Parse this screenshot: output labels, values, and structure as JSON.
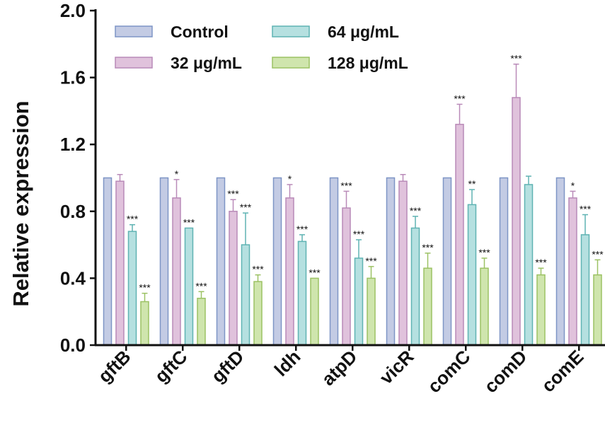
{
  "chart_data": {
    "type": "bar",
    "title": "",
    "xlabel": "",
    "ylabel": "Relative  expression",
    "ylim": [
      0,
      2.0
    ],
    "yticks": [
      "0.0",
      "0.4",
      "0.8",
      "1.2",
      "1.6",
      "2.0"
    ],
    "ytick_values": [
      0,
      0.4,
      0.8,
      1.2,
      1.6,
      2.0
    ],
    "categories": [
      "gftB",
      "gftC",
      "gftD",
      "ldh",
      "atpD",
      "vicR",
      "comC",
      "comD",
      "comE"
    ],
    "legend_position": "top-left",
    "series": [
      {
        "name": "Control",
        "fill": "#c3cbe4",
        "stroke": "#7e95c6",
        "values": [
          1.0,
          1.0,
          1.0,
          1.0,
          1.0,
          1.0,
          1.0,
          1.0,
          1.0
        ],
        "errors": [
          0,
          0,
          0,
          0,
          0,
          0,
          0,
          0,
          0
        ],
        "sig": [
          "",
          "",
          "",
          "",
          "",
          "",
          "",
          "",
          ""
        ]
      },
      {
        "name": "32 μg/mL",
        "fill": "#e0c2dc",
        "stroke": "#b98ab8",
        "values": [
          0.98,
          0.88,
          0.8,
          0.88,
          0.82,
          0.98,
          1.32,
          1.48,
          0.88
        ],
        "errors": [
          0.04,
          0.11,
          0.07,
          0.08,
          0.1,
          0.04,
          0.12,
          0.2,
          0.04
        ],
        "sig": [
          "",
          "*",
          "***",
          "*",
          "***",
          "",
          "***",
          "***",
          "*"
        ]
      },
      {
        "name": "64 μg/mL",
        "fill": "#b5e0e0",
        "stroke": "#5fb3b3",
        "values": [
          0.68,
          0.7,
          0.6,
          0.62,
          0.52,
          0.7,
          0.84,
          0.96,
          0.66
        ],
        "errors": [
          0.04,
          0.0,
          0.19,
          0.04,
          0.11,
          0.07,
          0.09,
          0.05,
          0.12
        ],
        "sig": [
          "***",
          "***",
          "***",
          "***",
          "***",
          "***",
          "**",
          "",
          "***"
        ]
      },
      {
        "name": "128 μg/mL",
        "fill": "#cfe5ad",
        "stroke": "#9cc264",
        "values": [
          0.26,
          0.28,
          0.38,
          0.4,
          0.4,
          0.46,
          0.46,
          0.42,
          0.42
        ],
        "errors": [
          0.05,
          0.04,
          0.04,
          0.0,
          0.07,
          0.09,
          0.06,
          0.04,
          0.09
        ],
        "sig": [
          "***",
          "***",
          "***",
          "***",
          "***",
          "***",
          "***",
          "***",
          "***"
        ]
      }
    ]
  }
}
